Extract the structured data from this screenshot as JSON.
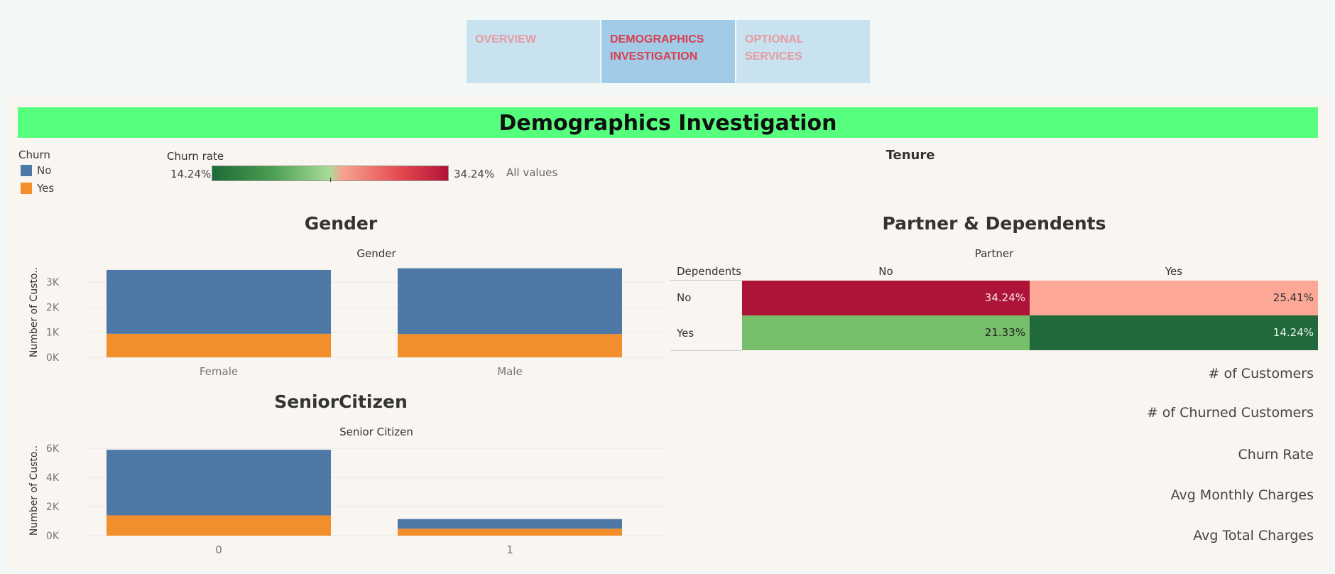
{
  "tabs": [
    {
      "label": "OVERVIEW",
      "active": false
    },
    {
      "label": "DEMOGRAPHICS INVESTIGATION",
      "active": true
    },
    {
      "label": "OPTIONAL SERVICES",
      "active": false
    }
  ],
  "title": "Demographics Investigation",
  "churn_legend": {
    "title": "Churn",
    "items": [
      {
        "label": "No",
        "color": "#4e79a7"
      },
      {
        "label": "Yes",
        "color": "#f28e2b"
      }
    ]
  },
  "churn_rate_legend": {
    "title": "Churn rate",
    "min": "14.24%",
    "max": "34.24%",
    "note": "All values"
  },
  "tenure_title": "Tenure",
  "gender_section_title": "Gender",
  "senior_section_title": "SeniorCitizen",
  "partner_section_title": "Partner & Dependents",
  "colors": {
    "no": "#4e79a7",
    "yes": "#f28e2b",
    "title_bar": "#57ff7e"
  },
  "chart_data": [
    {
      "type": "bar",
      "stacked": true,
      "title": "Gender",
      "ylabel": "Number of Custo..",
      "categories": [
        "Female",
        "Male"
      ],
      "yticks": [
        0,
        1000,
        2000,
        3000
      ],
      "tick_labels": [
        "0K",
        "1K",
        "2K",
        "3K"
      ],
      "ylim": [
        0,
        3600
      ],
      "series": [
        {
          "name": "No",
          "values": [
            2549,
            2625
          ]
        },
        {
          "name": "Yes",
          "values": [
            939,
            930
          ]
        }
      ]
    },
    {
      "type": "bar",
      "stacked": true,
      "title": "Senior Citizen",
      "ylabel": "Number of Custo..",
      "categories": [
        "0",
        "1"
      ],
      "yticks": [
        0,
        2000,
        4000,
        6000
      ],
      "tick_labels": [
        "0K",
        "2K",
        "4K",
        "6K"
      ],
      "ylim": [
        0,
        6200
      ],
      "series": [
        {
          "name": "No",
          "values": [
            4508,
            666
          ]
        },
        {
          "name": "Yes",
          "values": [
            1393,
            476
          ]
        }
      ]
    },
    {
      "type": "heatmap",
      "title": "Partner",
      "row_header": "Dependents",
      "columns": [
        "No",
        "Yes"
      ],
      "rows": [
        "No",
        "Yes"
      ],
      "values": [
        [
          "34.24%",
          "25.41%"
        ],
        [
          "21.33%",
          "14.24%"
        ]
      ],
      "colors": [
        [
          "#ad1437",
          "#fda797"
        ],
        [
          "#77be6b",
          "#21693a"
        ]
      ],
      "text_colors": [
        [
          "#f4e2e6",
          "#333333"
        ],
        [
          "#222222",
          "#e6f2ea"
        ]
      ]
    }
  ],
  "kpis": [
    {
      "label": "# of Customers"
    },
    {
      "label": "# of Churned Customers"
    },
    {
      "label": "Churn Rate"
    },
    {
      "label": "Avg Monthly Charges"
    },
    {
      "label": "Avg Total Charges"
    }
  ]
}
